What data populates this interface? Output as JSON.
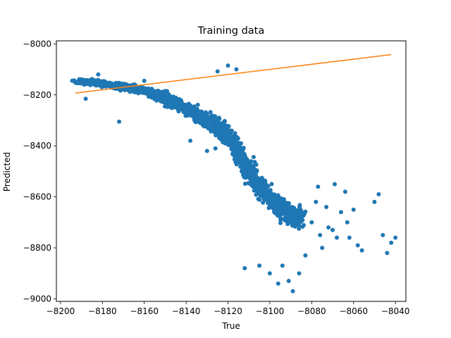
{
  "chart_data": {
    "type": "scatter",
    "title": "Training data",
    "xlabel": "True",
    "ylabel": "Predicted",
    "xlim": [
      -8202,
      -8035
    ],
    "ylim": [
      -9010,
      -7988
    ],
    "xticks": [
      -8200,
      -8180,
      -8160,
      -8140,
      -8120,
      -8100,
      -8080,
      -8060,
      -8040
    ],
    "yticks": [
      -9000,
      -8800,
      -8600,
      -8400,
      -8200,
      -8000
    ],
    "grid": false,
    "colors": {
      "points": "#1f77b4",
      "line": "#ff7f0e"
    },
    "series": [
      {
        "kind": "points",
        "profile": [
          {
            "x": -8192,
            "y": -8148,
            "spread": 18
          },
          {
            "x": -8185,
            "y": -8150,
            "spread": 22
          },
          {
            "x": -8178,
            "y": -8160,
            "spread": 25
          },
          {
            "x": -8170,
            "y": -8170,
            "spread": 28
          },
          {
            "x": -8162,
            "y": -8180,
            "spread": 32
          },
          {
            "x": -8155,
            "y": -8195,
            "spread": 38
          },
          {
            "x": -8148,
            "y": -8220,
            "spread": 45
          },
          {
            "x": -8140,
            "y": -8255,
            "spread": 55
          },
          {
            "x": -8132,
            "y": -8290,
            "spread": 65
          },
          {
            "x": -8124,
            "y": -8330,
            "spread": 85
          },
          {
            "x": -8118,
            "y": -8380,
            "spread": 95
          },
          {
            "x": -8114,
            "y": -8440,
            "spread": 100
          },
          {
            "x": -8110,
            "y": -8500,
            "spread": 95
          },
          {
            "x": -8105,
            "y": -8560,
            "spread": 90
          },
          {
            "x": -8100,
            "y": -8600,
            "spread": 85
          },
          {
            "x": -8095,
            "y": -8640,
            "spread": 80
          },
          {
            "x": -8090,
            "y": -8670,
            "spread": 85
          },
          {
            "x": -8085,
            "y": -8680,
            "spread": 80
          }
        ],
        "outliers": [
          {
            "x": -8080,
            "y": -8700
          },
          {
            "x": -8078,
            "y": -8620
          },
          {
            "x": -8077,
            "y": -8560
          },
          {
            "x": -8076,
            "y": -8750
          },
          {
            "x": -8075,
            "y": -8800
          },
          {
            "x": -8073,
            "y": -8640
          },
          {
            "x": -8072,
            "y": -8720
          },
          {
            "x": -8070,
            "y": -8730
          },
          {
            "x": -8069,
            "y": -8550
          },
          {
            "x": -8068,
            "y": -8760
          },
          {
            "x": -8066,
            "y": -8660
          },
          {
            "x": -8064,
            "y": -8580
          },
          {
            "x": -8063,
            "y": -8700
          },
          {
            "x": -8062,
            "y": -8760
          },
          {
            "x": -8060,
            "y": -8650
          },
          {
            "x": -8058,
            "y": -8790
          },
          {
            "x": -8056,
            "y": -8810
          },
          {
            "x": -8050,
            "y": -8620
          },
          {
            "x": -8048,
            "y": -8590
          },
          {
            "x": -8046,
            "y": -8750
          },
          {
            "x": -8044,
            "y": -8820
          },
          {
            "x": -8042,
            "y": -8780
          },
          {
            "x": -8040,
            "y": -8760
          },
          {
            "x": -8091,
            "y": -8930
          },
          {
            "x": -8089,
            "y": -8970
          },
          {
            "x": -8094,
            "y": -8870
          },
          {
            "x": -8100,
            "y": -8900
          },
          {
            "x": -8105,
            "y": -8870
          },
          {
            "x": -8112,
            "y": -8880
          },
          {
            "x": -8086,
            "y": -8900
          },
          {
            "x": -8083,
            "y": -8830
          },
          {
            "x": -8096,
            "y": -8940
          },
          {
            "x": -8150,
            "y": -8185
          },
          {
            "x": -8172,
            "y": -8305
          },
          {
            "x": -8188,
            "y": -8215
          },
          {
            "x": -8182,
            "y": -8120
          },
          {
            "x": -8120,
            "y": -8085
          },
          {
            "x": -8116,
            "y": -8100
          },
          {
            "x": -8125,
            "y": -8108
          },
          {
            "x": -8160,
            "y": -8145
          },
          {
            "x": -8143,
            "y": -8250
          },
          {
            "x": -8138,
            "y": -8380
          },
          {
            "x": -8130,
            "y": -8420
          },
          {
            "x": -8126,
            "y": -8410
          },
          {
            "x": -8136,
            "y": -8300
          }
        ]
      },
      {
        "kind": "line",
        "x": [
          -8193,
          -8042
        ],
        "y": [
          -8193,
          -8042
        ]
      }
    ]
  }
}
